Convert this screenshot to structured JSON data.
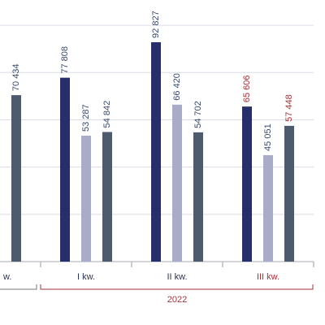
{
  "chart_data": {
    "type": "bar",
    "categories": [
      "w.",
      "I kw.",
      "II kw.",
      "III kw."
    ],
    "series": [
      {
        "color": "#262f6b",
        "values": [
          null,
          77808,
          92827,
          65606
        ],
        "value_labels": [
          null,
          "77 808",
          "92 827",
          "65 606"
        ]
      },
      {
        "color": "#a9abc8",
        "values": [
          null,
          53287,
          66420,
          45051
        ],
        "value_labels": [
          null,
          "53 287",
          "66 420",
          "45 051"
        ]
      },
      {
        "color": "#4c5b6e",
        "values": [
          70434,
          54842,
          54702,
          57448
        ],
        "value_labels": [
          "70 434",
          "54 842",
          "54 702",
          "57 448"
        ]
      }
    ],
    "ylim": [
      0,
      110000
    ],
    "yticks": [
      0,
      20000,
      40000,
      60000,
      80000,
      100000
    ],
    "grid": true,
    "group_label": "2022",
    "highlight": {
      "category": 3,
      "series": [
        0,
        2
      ],
      "color": "#a0343a"
    }
  }
}
